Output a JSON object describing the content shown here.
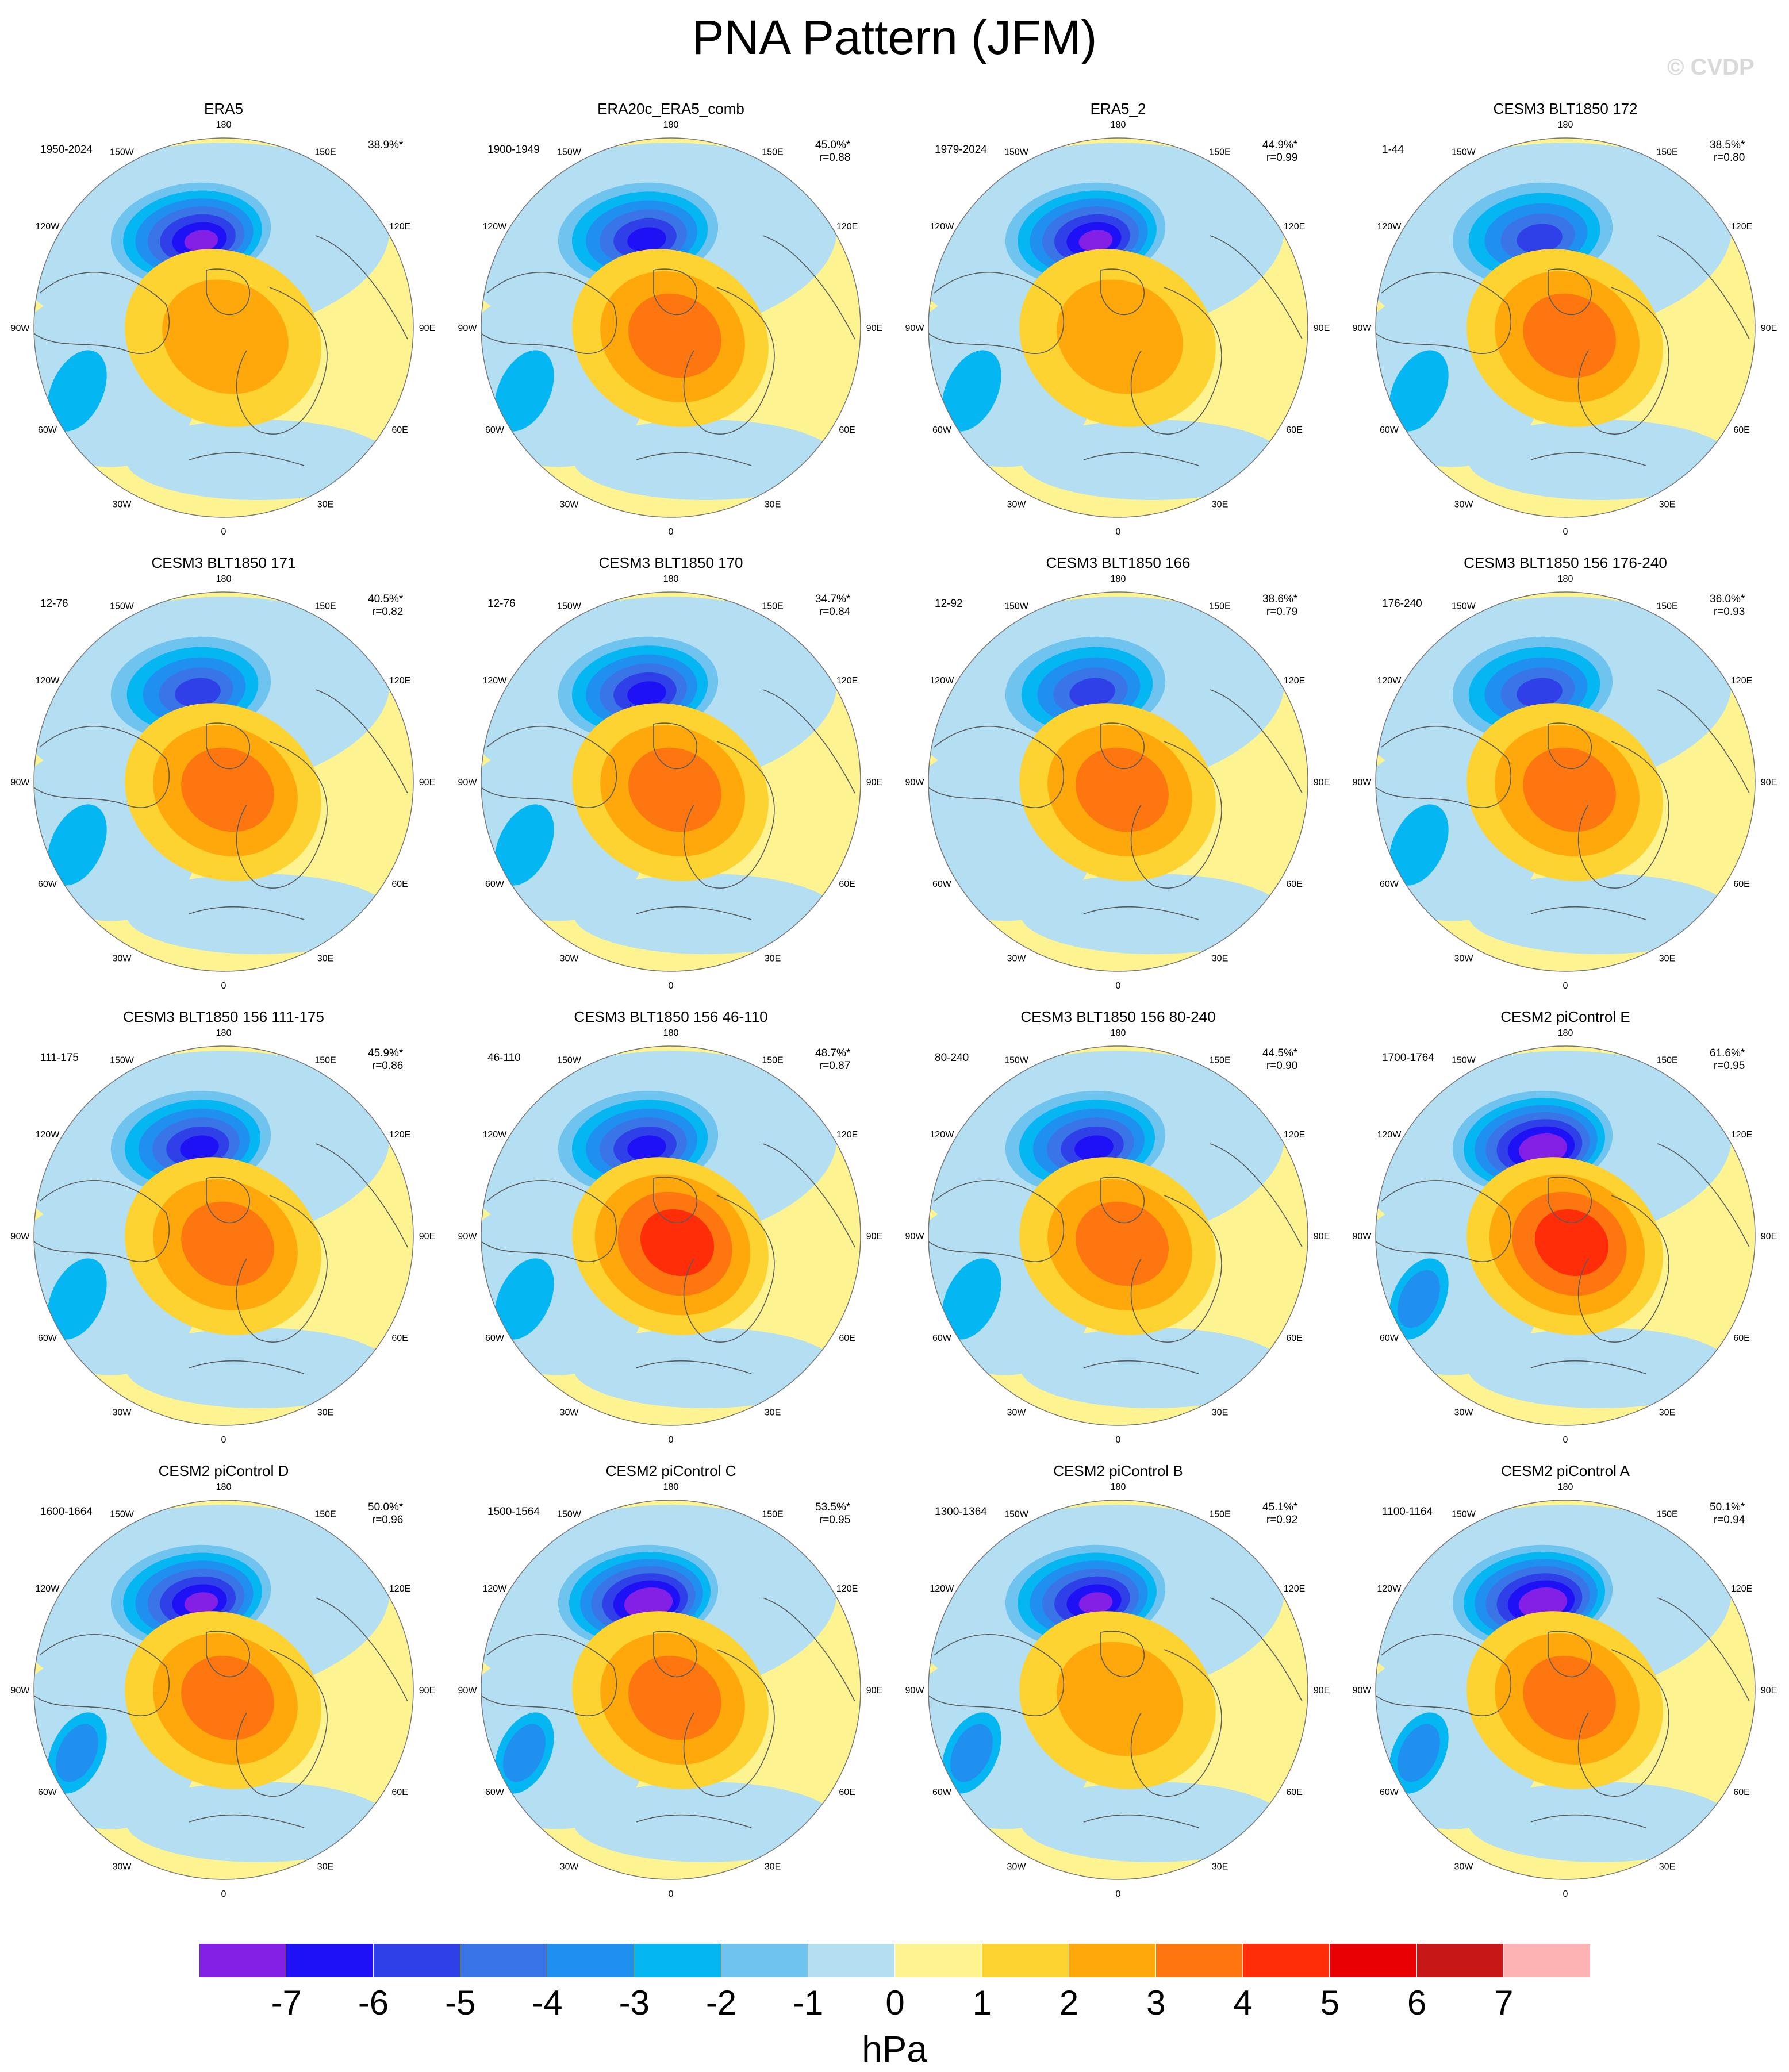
{
  "title": "PNA Pattern (JFM)",
  "watermark": "© CVDP",
  "longitude_labels": [
    "180",
    "150E",
    "120E",
    "90E",
    "60E",
    "30E",
    "0",
    "30W",
    "60W",
    "90W",
    "120W",
    "150W"
  ],
  "colors": {
    "levels": [
      "#8420e6",
      "#1e11f5",
      "#2f40e8",
      "#3a75e8",
      "#2090f0",
      "#04b6f2",
      "#6ec3ef",
      "#b4def2",
      "#fef391",
      "#fdd331",
      "#fea80b",
      "#fe7610",
      "#ff2e09",
      "#e80005",
      "#c71717",
      "#fdb3b4"
    ],
    "land_outline": "#5a5a5a",
    "rim": "#ffffff"
  },
  "colorbar": {
    "ticks": [
      "-7",
      "-6",
      "-5",
      "-4",
      "-3",
      "-2",
      "-1",
      "0",
      "1",
      "2",
      "3",
      "4",
      "5",
      "6",
      "7"
    ],
    "units": "hPa"
  },
  "panels": [
    {
      "title": "ERA5",
      "period": "1950-2024",
      "pct": "38.9%*",
      "r": ""
    },
    {
      "title": "ERA20c_ERA5_comb",
      "period": "1900-1949",
      "pct": "45.0%*",
      "r": "r=0.88"
    },
    {
      "title": "ERA5_2",
      "period": "1979-2024",
      "pct": "44.9%*",
      "r": "r=0.99"
    },
    {
      "title": "CESM3 BLT1850 172",
      "period": "1-44",
      "pct": "38.5%*",
      "r": "r=0.80"
    },
    {
      "title": "CESM3 BLT1850 171",
      "period": "12-76",
      "pct": "40.5%*",
      "r": "r=0.82"
    },
    {
      "title": "CESM3 BLT1850 170",
      "period": "12-76",
      "pct": "34.7%*",
      "r": "r=0.84"
    },
    {
      "title": "CESM3 BLT1850 166",
      "period": "12-92",
      "pct": "38.6%*",
      "r": "r=0.79"
    },
    {
      "title": "CESM3 BLT1850 156 176-240",
      "period": "176-240",
      "pct": "36.0%*",
      "r": "r=0.93"
    },
    {
      "title": "CESM3 BLT1850 156 111-175",
      "period": "111-175",
      "pct": "45.9%*",
      "r": "r=0.86"
    },
    {
      "title": "CESM3 BLT1850 156 46-110",
      "period": "46-110",
      "pct": "48.7%*",
      "r": "r=0.87"
    },
    {
      "title": "CESM3 BLT1850 156 80-240",
      "period": "80-240",
      "pct": "44.5%*",
      "r": "r=0.90"
    },
    {
      "title": "CESM2 piControl E",
      "period": "1700-1764",
      "pct": "61.6%*",
      "r": "r=0.95"
    },
    {
      "title": "CESM2 piControl D",
      "period": "1600-1664",
      "pct": "50.0%*",
      "r": "r=0.96"
    },
    {
      "title": "CESM2 piControl C",
      "period": "1500-1564",
      "pct": "53.5%*",
      "r": "r=0.95"
    },
    {
      "title": "CESM2 piControl B",
      "period": "1300-1364",
      "pct": "45.1%*",
      "r": "r=0.92"
    },
    {
      "title": "CESM2 piControl A",
      "period": "1100-1164",
      "pct": "50.1%*",
      "r": "r=0.94"
    }
  ],
  "field_features": {
    "pacific_low_peak_hpa": [
      -6.5,
      -6,
      -6.5,
      -5,
      -5,
      -5.5,
      -5,
      -5,
      -5.5,
      -6,
      -5.5,
      -7.5,
      -7,
      -7.5,
      -6.5,
      -7.5
    ],
    "arctic_high_peak_hpa": [
      2.5,
      3.5,
      2.5,
      3,
      3,
      3.5,
      3,
      3,
      3.5,
      4,
      3.5,
      4,
      3,
      3.5,
      2.5,
      3.5
    ],
    "atlantic_low_peak_hpa": [
      -2,
      -2,
      -2,
      -1.5,
      -1.5,
      -1.5,
      -1,
      -2,
      -2,
      -2,
      -2,
      -3,
      -3,
      -2.5,
      -3,
      -3
    ]
  }
}
